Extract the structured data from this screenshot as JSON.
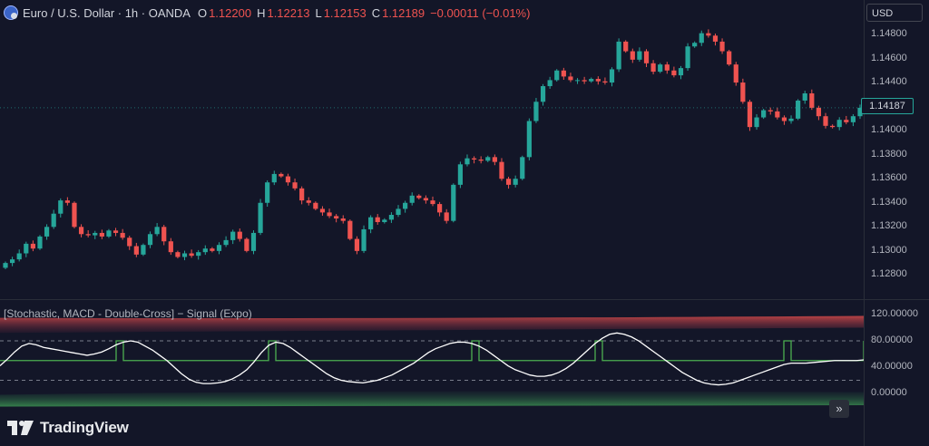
{
  "header": {
    "symbol": "Euro / U.S. Dollar · 1h · OANDA",
    "ohlc": [
      {
        "key": "O",
        "value": "1.12200"
      },
      {
        "key": "H",
        "value": "1.12213"
      },
      {
        "key": "L",
        "value": "1.12153"
      },
      {
        "key": "C",
        "value": "1.12189"
      }
    ],
    "change": "−0.00011 (−0.01%)",
    "flag_icon": "eur-usd-flag-icon"
  },
  "currency_button": "USD",
  "last_price": "1.14187",
  "colors": {
    "background": "#131628",
    "up": "#26a69a",
    "down": "#ef5350",
    "stoch_line": "#ffffff",
    "signal_line": "#4caf50"
  },
  "chart_data": [
    {
      "type": "candlestick",
      "y_ticks": [
        "1.14800",
        "1.14600",
        "1.14400",
        "1.14200",
        "1.14000",
        "1.13800",
        "1.13600",
        "1.13400",
        "1.13200",
        "1.13000",
        "1.12800"
      ],
      "ylim": [
        1.1272,
        1.1486
      ],
      "close": [
        1.129,
        1.1293,
        1.1298,
        1.1306,
        1.1302,
        1.1312,
        1.132,
        1.1331,
        1.1342,
        1.134,
        1.132,
        1.1314,
        1.1313,
        1.1315,
        1.1312,
        1.1317,
        1.1315,
        1.1311,
        1.1304,
        1.1297,
        1.1305,
        1.1314,
        1.132,
        1.1308,
        1.1299,
        1.1295,
        1.1298,
        1.1296,
        1.1299,
        1.1302,
        1.13,
        1.1305,
        1.1309,
        1.1316,
        1.131,
        1.13,
        1.1315,
        1.134,
        1.1357,
        1.1364,
        1.1362,
        1.1357,
        1.1352,
        1.1342,
        1.134,
        1.1335,
        1.1332,
        1.1329,
        1.1327,
        1.1325,
        1.131,
        1.13,
        1.1318,
        1.1328,
        1.1324,
        1.1326,
        1.133,
        1.1335,
        1.134,
        1.1346,
        1.1344,
        1.1342,
        1.1339,
        1.1332,
        1.1325,
        1.1355,
        1.1372,
        1.1377,
        1.1376,
        1.1375,
        1.1378,
        1.1374,
        1.136,
        1.1355,
        1.136,
        1.1378,
        1.1408,
        1.1424,
        1.1437,
        1.1442,
        1.145,
        1.1445,
        1.1442,
        1.1442,
        1.1441,
        1.1443,
        1.1441,
        1.144,
        1.1451,
        1.1474,
        1.1466,
        1.1459,
        1.1466,
        1.1456,
        1.1449,
        1.1455,
        1.145,
        1.1446,
        1.1452,
        1.147,
        1.1473,
        1.1481,
        1.1479,
        1.1474,
        1.1466,
        1.1455,
        1.144,
        1.1424,
        1.1403,
        1.1411,
        1.1417,
        1.1416,
        1.1411,
        1.1408,
        1.141,
        1.1425,
        1.1431,
        1.1419,
        1.1412,
        1.1404,
        1.1403,
        1.1409,
        1.1407,
        1.1412,
        1.1419
      ],
      "y2_ticks": [
        "120.00000",
        "80.00000",
        "40.00000",
        "0.00000"
      ],
      "y2lim": [
        -22,
        136
      ]
    },
    {
      "type": "line",
      "title": "[Stochastic, MACD - Double-Cross] − Signal (Expo)",
      "y_ticks": [
        "120.00000",
        "80.00000",
        "40.00000",
        "0.00000"
      ],
      "ylim": [
        -22,
        136
      ],
      "levels": [
        80,
        20,
        50
      ],
      "series": [
        {
          "values": [
            42,
            52,
            63,
            72,
            76,
            74,
            70,
            68,
            66,
            64,
            62,
            60,
            58,
            60,
            63,
            68,
            74,
            78,
            80,
            78,
            72,
            66,
            58,
            50,
            40,
            30,
            22,
            17,
            15,
            15,
            16,
            18,
            22,
            28,
            36,
            48,
            62,
            73,
            78,
            76,
            70,
            62,
            54,
            46,
            38,
            30,
            24,
            20,
            18,
            17,
            16,
            18,
            20,
            24,
            28,
            34,
            40,
            46,
            54,
            62,
            68,
            72,
            76,
            78,
            78,
            76,
            72,
            66,
            58,
            50,
            42,
            36,
            32,
            28,
            26,
            26,
            28,
            32,
            38,
            46,
            56,
            66,
            76,
            84,
            90,
            92,
            90,
            86,
            80,
            72,
            64,
            56,
            48,
            40,
            32,
            26,
            20,
            16,
            14,
            13,
            14,
            16,
            20,
            24,
            28,
            32,
            36,
            40,
            44,
            46,
            46,
            46,
            47,
            48,
            49,
            50,
            50,
            50,
            50,
            51
          ]
        },
        {
          "values": [
            50,
            50,
            50,
            50,
            50,
            50,
            50,
            50,
            50,
            50,
            50,
            50,
            50,
            50,
            50,
            50,
            80,
            50,
            50,
            50,
            50,
            50,
            50,
            50,
            50,
            50,
            50,
            50,
            50,
            50,
            50,
            50,
            50,
            50,
            50,
            50,
            50,
            80,
            50,
            50,
            50,
            50,
            50,
            50,
            50,
            50,
            50,
            50,
            50,
            50,
            50,
            50,
            50,
            50,
            50,
            50,
            50,
            50,
            50,
            50,
            50,
            50,
            50,
            50,
            50,
            80,
            50,
            50,
            50,
            50,
            50,
            50,
            50,
            50,
            50,
            50,
            50,
            50,
            50,
            50,
            50,
            50,
            80,
            50,
            50,
            50,
            50,
            50,
            50,
            50,
            50,
            50,
            50,
            50,
            50,
            50,
            50,
            50,
            50,
            50,
            50,
            50,
            50,
            50,
            50,
            50,
            50,
            50,
            80,
            50,
            50,
            50,
            50,
            50,
            50,
            50,
            50,
            50,
            50,
            80
          ]
        }
      ]
    }
  ],
  "indicator_title": "[Stochastic, MACD - Double-Cross] − Signal (Expo)",
  "scroll_button_icon": "double-chevron-right-icon",
  "logo": {
    "text": "TradingView",
    "icon": "tradingview-logo-icon"
  }
}
